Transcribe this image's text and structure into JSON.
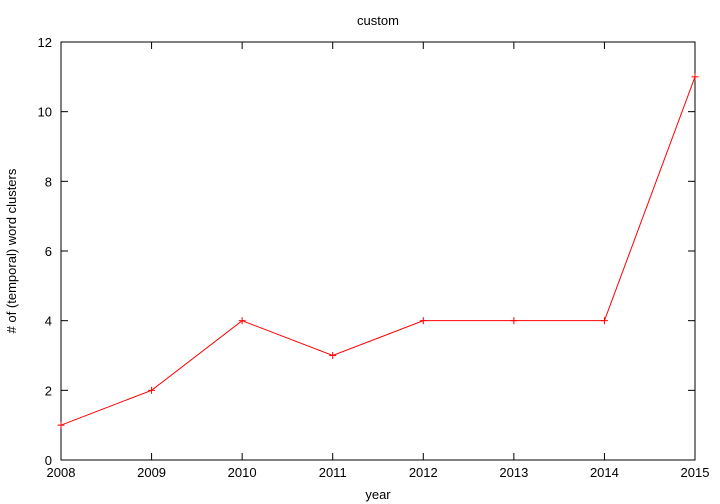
{
  "chart_data": {
    "type": "line",
    "title": "custom",
    "xlabel": "year",
    "ylabel": "# of (temporal) word clusters",
    "x": [
      2008,
      2009,
      2010,
      2011,
      2012,
      2013,
      2014,
      2015
    ],
    "series": [
      {
        "values": [
          1,
          2,
          4,
          3,
          4,
          4,
          4,
          11
        ],
        "color": "#ff0000",
        "marker": "plus"
      }
    ],
    "xlim": [
      2008,
      2015
    ],
    "ylim": [
      0,
      12
    ],
    "xticks": [
      "2008",
      "2009",
      "2010",
      "2011",
      "2012",
      "2013",
      "2014",
      "2015"
    ],
    "yticks": [
      "0",
      "2",
      "4",
      "6",
      "8",
      "10",
      "12"
    ],
    "grid": false,
    "legend": "none"
  }
}
